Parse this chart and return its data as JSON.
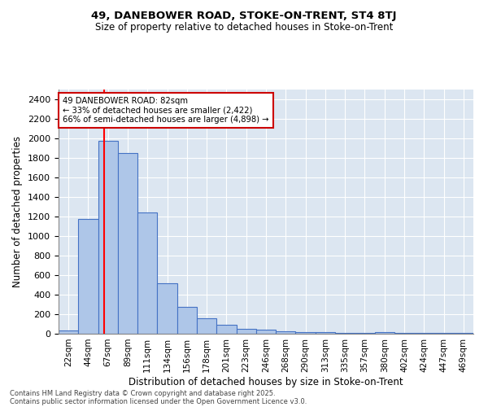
{
  "title1": "49, DANEBOWER ROAD, STOKE-ON-TRENT, ST4 8TJ",
  "title2": "Size of property relative to detached houses in Stoke-on-Trent",
  "xlabel": "Distribution of detached houses by size in Stoke-on-Trent",
  "ylabel": "Number of detached properties",
  "categories": [
    "22sqm",
    "44sqm",
    "67sqm",
    "89sqm",
    "111sqm",
    "134sqm",
    "156sqm",
    "178sqm",
    "201sqm",
    "223sqm",
    "246sqm",
    "268sqm",
    "290sqm",
    "313sqm",
    "335sqm",
    "357sqm",
    "380sqm",
    "402sqm",
    "424sqm",
    "447sqm",
    "469sqm"
  ],
  "values": [
    30,
    1175,
    1975,
    1850,
    1240,
    515,
    275,
    155,
    90,
    48,
    38,
    25,
    20,
    20,
    10,
    5,
    15,
    5,
    5,
    5,
    5
  ],
  "bar_color": "#aec6e8",
  "bar_edge_color": "#4472c4",
  "background_color": "#dce6f1",
  "red_line_x": 1.82,
  "annotation_text": "49 DANEBOWER ROAD: 82sqm\n← 33% of detached houses are smaller (2,422)\n66% of semi-detached houses are larger (4,898) →",
  "annotation_box_color": "#ffffff",
  "annotation_box_edge": "#cc0000",
  "footer1": "Contains HM Land Registry data © Crown copyright and database right 2025.",
  "footer2": "Contains public sector information licensed under the Open Government Licence v3.0.",
  "ylim": [
    0,
    2500
  ],
  "yticks": [
    0,
    200,
    400,
    600,
    800,
    1000,
    1200,
    1400,
    1600,
    1800,
    2000,
    2200,
    2400
  ]
}
